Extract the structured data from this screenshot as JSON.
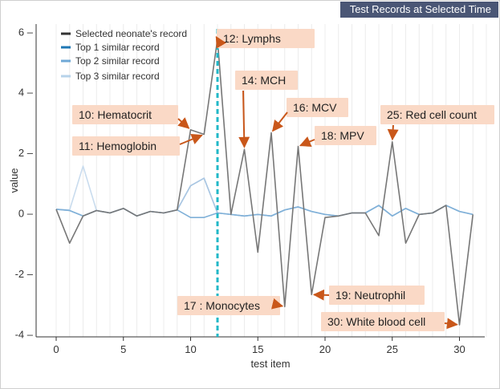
{
  "panel": {
    "title": "Test Records at Selected Time"
  },
  "chart_data": {
    "type": "line",
    "xlabel": "test item",
    "ylabel": "value",
    "xlim": [
      0,
      32
    ],
    "ylim": [
      -4.1,
      6.2
    ],
    "xticks": [
      0,
      5,
      10,
      15,
      20,
      25,
      30
    ],
    "yticks": [
      -4,
      -2,
      0,
      2,
      4,
      6
    ],
    "ytick_labels": [
      "-4 –",
      "-2 –",
      "0 –",
      "2 –",
      "4 –",
      "6 –"
    ],
    "selected_time_x": 12,
    "legend": {
      "position": "top-left",
      "entries": [
        {
          "label": "Selected neonate's record",
          "color": "#333333"
        },
        {
          "label": "Top 1 similar record",
          "color": "#1f77b4"
        },
        {
          "label": "Top 2 similar record",
          "color": "#6fa8d6"
        },
        {
          "label": "Top 3 similar record",
          "color": "#b7d3ea"
        }
      ]
    },
    "x": [
      0,
      1,
      2,
      3,
      4,
      5,
      6,
      7,
      8,
      9,
      10,
      11,
      12,
      13,
      14,
      15,
      16,
      17,
      18,
      19,
      20,
      21,
      22,
      23,
      24,
      25,
      26,
      27,
      28,
      29,
      30,
      31
    ],
    "series": [
      {
        "name": "Top 3 similar record",
        "color": "#c9dcee",
        "values": [
          0.12,
          0.1,
          1.55,
          0.08,
          0.0,
          0.15,
          -0.1,
          0.05,
          0.0,
          0.1,
          0.9,
          1.15,
          0.0,
          -0.05,
          -0.1,
          -0.05,
          -0.1,
          0.1,
          0.2,
          0.05,
          -0.05,
          -0.1,
          0.0,
          0.0,
          0.25,
          -0.1,
          0.15,
          -0.05,
          0.0,
          0.25,
          0.05,
          -0.05
        ]
      },
      {
        "name": "Top 2 similar record",
        "color": "#a9c6e2",
        "values": [
          0.12,
          0.08,
          -0.1,
          0.08,
          0.0,
          0.15,
          -0.1,
          0.05,
          0.0,
          0.1,
          0.9,
          1.15,
          0.0,
          -0.05,
          -0.1,
          -0.05,
          -0.1,
          0.1,
          0.2,
          0.05,
          -0.05,
          -0.1,
          0.0,
          0.0,
          0.25,
          -0.1,
          0.15,
          -0.05,
          0.0,
          0.25,
          0.05,
          -0.05
        ]
      },
      {
        "name": "Top 1 similar record",
        "color": "#7fb0d8",
        "values": [
          0.12,
          0.08,
          -0.1,
          0.08,
          0.0,
          0.15,
          -0.1,
          0.05,
          0.0,
          0.1,
          -0.15,
          -0.15,
          0.0,
          -0.05,
          -0.1,
          -0.05,
          -0.1,
          0.1,
          0.2,
          0.05,
          -0.05,
          -0.1,
          0.0,
          0.0,
          0.25,
          -0.1,
          0.15,
          -0.05,
          0.0,
          0.25,
          0.05,
          -0.05
        ]
      },
      {
        "name": "Selected neonate's record",
        "color": "#777777",
        "values": [
          0.12,
          -1.0,
          -0.1,
          0.08,
          0.0,
          0.15,
          -0.1,
          0.05,
          0.0,
          0.1,
          2.75,
          2.6,
          5.75,
          -0.05,
          2.1,
          -1.3,
          2.65,
          -3.1,
          2.2,
          -2.7,
          -0.15,
          -0.1,
          0.0,
          0.0,
          -0.75,
          2.35,
          -1.0,
          -0.05,
          0.0,
          0.25,
          -3.7,
          -0.05
        ]
      }
    ],
    "annotations": [
      {
        "text": "12: Lymphs",
        "x": 12,
        "y": 5.75
      },
      {
        "text": "10: Hematocrit",
        "x": 10,
        "y": 2.75
      },
      {
        "text": "11: Hemoglobin",
        "x": 11,
        "y": 2.6
      },
      {
        "text": "14: MCH",
        "x": 14,
        "y": 2.1
      },
      {
        "text": "16: MCV",
        "x": 16,
        "y": 2.65
      },
      {
        "text": "18: MPV",
        "x": 18,
        "y": 2.2
      },
      {
        "text": "25: Red cell count",
        "x": 25,
        "y": 2.35
      },
      {
        "text": "17 : Monocytes",
        "x": 17,
        "y": -3.1
      },
      {
        "text": "19: Neutrophil",
        "x": 19,
        "y": -2.7
      },
      {
        "text": "30: White blood cell",
        "x": 30,
        "y": -3.7
      }
    ]
  }
}
